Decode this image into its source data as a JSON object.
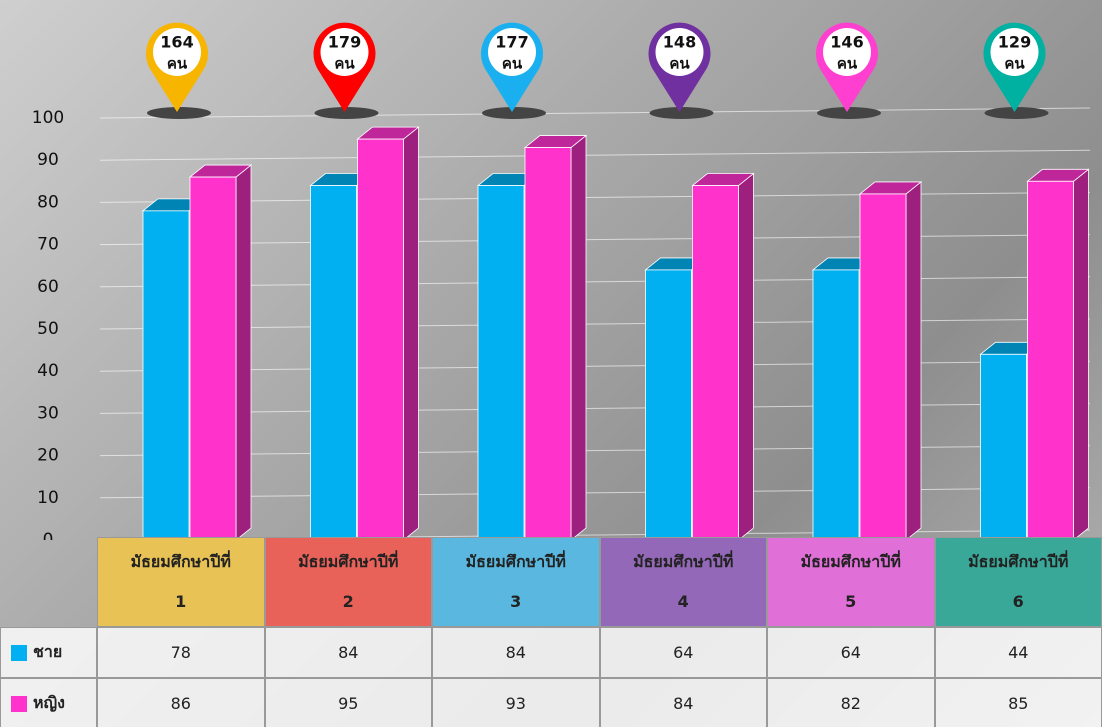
{
  "chart_data": {
    "type": "bar3d",
    "categories": [
      "มัธยมศึกษาปีที่ 1",
      "มัธยมศึกษาปีที่ 2",
      "มัธยมศึกษาปีที่ 3",
      "มัธยมศึกษาปีที่ 4",
      "มัธยมศึกษาปีที่ 5",
      "มัธยมศึกษาปีที่ 6"
    ],
    "category_colors": [
      "#e8c255",
      "#e8625a",
      "#5ab8e0",
      "#9468b8",
      "#e070d8",
      "#3aa898"
    ],
    "series": [
      {
        "name": "ชาย",
        "color": "#00b0f0",
        "values": [
          78,
          84,
          84,
          64,
          64,
          44
        ]
      },
      {
        "name": "หญิง",
        "color": "#ff33cc",
        "values": [
          86,
          95,
          93,
          84,
          82,
          85
        ]
      }
    ],
    "totals": {
      "values": [
        164,
        179,
        177,
        148,
        146,
        129
      ],
      "unit": "คน",
      "colors": [
        "#f7b500",
        "#ff0000",
        "#1ab0ef",
        "#7030a0",
        "#ff3fd0",
        "#00b0a0"
      ]
    },
    "ylim": [
      0,
      100
    ],
    "yticks": [
      0,
      10,
      20,
      30,
      40,
      50,
      60,
      70,
      80,
      90,
      100
    ],
    "grid": true
  }
}
